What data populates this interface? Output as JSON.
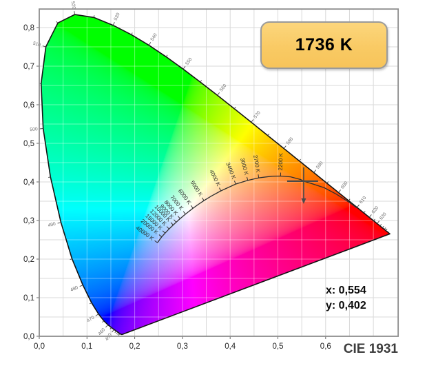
{
  "badge": {
    "label": "1736 K"
  },
  "readout": {
    "x": "x: 0,554",
    "y": "y: 0,402"
  },
  "caption": {
    "text": "CIE 1931"
  },
  "colors": {
    "badge_fill": "#f9ca64",
    "badge_border": "#9a9a9a",
    "badge_text": "#000000",
    "marker": "#4a4a4a",
    "grid_outer": "#d9d9d9",
    "grid_inner": "rgba(255,255,255,0.4)",
    "locus_outline": "#141414",
    "planckian_line": "#2f2f2f",
    "wavelength_label": "#6e6e6e",
    "axis_label": "#222222",
    "plot_border": "#8e8e8e"
  },
  "chart_data": {
    "type": "scatter",
    "subtype": "cie-1931-chromaticity-diagram",
    "title": "CIE 1931",
    "xlabel": "",
    "ylabel": "",
    "grid": true,
    "grid_step": 0.05,
    "x_axis": {
      "min": 0,
      "max": 0.752,
      "ticks": [
        {
          "v": 0.0,
          "label": "0,0"
        },
        {
          "v": 0.1,
          "label": "0,1"
        },
        {
          "v": 0.2,
          "label": "0,2"
        },
        {
          "v": 0.3,
          "label": "0,3"
        },
        {
          "v": 0.4,
          "label": "0,4"
        },
        {
          "v": 0.5,
          "label": "0,5"
        },
        {
          "v": 0.6,
          "label": "0,6"
        }
      ]
    },
    "y_axis": {
      "min": 0,
      "max": 0.848,
      "ticks": [
        {
          "v": 0.0,
          "label": "0,0"
        },
        {
          "v": 0.1,
          "label": "0,1"
        },
        {
          "v": 0.2,
          "label": "0,2"
        },
        {
          "v": 0.3,
          "label": "0,3"
        },
        {
          "v": 0.4,
          "label": "0,4"
        },
        {
          "v": 0.5,
          "label": "0,5"
        },
        {
          "v": 0.6,
          "label": "0,6"
        },
        {
          "v": 0.7,
          "label": "0,7"
        },
        {
          "v": 0.8,
          "label": "0,8"
        }
      ]
    },
    "marker": {
      "x": 0.554,
      "y": 0.402,
      "cct_kelvin": 1736,
      "label": "1736 K"
    },
    "spectral_locus": [
      [
        380,
        0.1741,
        0.005
      ],
      [
        385,
        0.174,
        0.005
      ],
      [
        390,
        0.1738,
        0.0049
      ],
      [
        395,
        0.1736,
        0.0049
      ],
      [
        400,
        0.1733,
        0.0048
      ],
      [
        405,
        0.173,
        0.0048
      ],
      [
        410,
        0.1726,
        0.0048
      ],
      [
        415,
        0.1721,
        0.0048
      ],
      [
        420,
        0.1714,
        0.0051
      ],
      [
        425,
        0.1703,
        0.0058
      ],
      [
        430,
        0.1689,
        0.0069
      ],
      [
        435,
        0.1669,
        0.0086
      ],
      [
        440,
        0.1644,
        0.0109
      ],
      [
        445,
        0.1611,
        0.0138
      ],
      [
        450,
        0.1566,
        0.0177
      ],
      [
        455,
        0.151,
        0.0227
      ],
      [
        460,
        0.144,
        0.0297
      ],
      [
        465,
        0.1355,
        0.0399
      ],
      [
        470,
        0.1241,
        0.0578
      ],
      [
        475,
        0.1096,
        0.0868
      ],
      [
        480,
        0.0913,
        0.1327
      ],
      [
        485,
        0.0687,
        0.2007
      ],
      [
        490,
        0.0454,
        0.295
      ],
      [
        495,
        0.0235,
        0.4127
      ],
      [
        500,
        0.0082,
        0.5384
      ],
      [
        505,
        0.0039,
        0.6548
      ],
      [
        510,
        0.0139,
        0.7502
      ],
      [
        515,
        0.0389,
        0.812
      ],
      [
        520,
        0.0743,
        0.8338
      ],
      [
        525,
        0.1142,
        0.8262
      ],
      [
        530,
        0.1547,
        0.8059
      ],
      [
        535,
        0.1929,
        0.7816
      ],
      [
        540,
        0.2296,
        0.7543
      ],
      [
        545,
        0.2658,
        0.7243
      ],
      [
        550,
        0.3016,
        0.6923
      ],
      [
        555,
        0.3373,
        0.6589
      ],
      [
        560,
        0.3731,
        0.6245
      ],
      [
        565,
        0.4087,
        0.5896
      ],
      [
        570,
        0.4441,
        0.5547
      ],
      [
        575,
        0.4788,
        0.5202
      ],
      [
        580,
        0.5125,
        0.4866
      ],
      [
        585,
        0.5448,
        0.4544
      ],
      [
        590,
        0.5752,
        0.4242
      ],
      [
        595,
        0.6029,
        0.3965
      ],
      [
        600,
        0.627,
        0.3725
      ],
      [
        605,
        0.6482,
        0.3514
      ],
      [
        610,
        0.6658,
        0.334
      ],
      [
        615,
        0.6801,
        0.3197
      ],
      [
        620,
        0.6915,
        0.3083
      ],
      [
        625,
        0.7006,
        0.2993
      ],
      [
        630,
        0.7079,
        0.292
      ],
      [
        635,
        0.714,
        0.2859
      ],
      [
        640,
        0.719,
        0.2809
      ],
      [
        645,
        0.723,
        0.277
      ],
      [
        650,
        0.726,
        0.274
      ],
      [
        655,
        0.7283,
        0.2717
      ],
      [
        660,
        0.73,
        0.27
      ],
      [
        670,
        0.732,
        0.268
      ],
      [
        680,
        0.7334,
        0.2666
      ],
      [
        690,
        0.7344,
        0.2656
      ],
      [
        700,
        0.7347,
        0.2653
      ]
    ],
    "wavelength_labels_nm": [
      450,
      460,
      470,
      480,
      490,
      500,
      510,
      520,
      530,
      540,
      550,
      560,
      570,
      580,
      590,
      600,
      610,
      620,
      630
    ],
    "wavelength_minor_tick_step_nm": 5,
    "planckian_locus": [
      [
        950,
        0.665,
        0.333,
        null
      ],
      [
        1000,
        0.6528,
        0.3444,
        null
      ],
      [
        1200,
        0.623,
        0.368,
        null
      ],
      [
        1400,
        0.597,
        0.385,
        null
      ],
      [
        1600,
        0.57,
        0.396,
        null
      ],
      [
        1736,
        0.554,
        0.402,
        null
      ],
      [
        1800,
        0.548,
        0.406,
        null
      ],
      [
        2000,
        0.5267,
        0.4133,
        null
      ],
      [
        2200,
        0.5056,
        0.4152,
        "2200 K"
      ],
      [
        2400,
        0.4878,
        0.4148,
        null
      ],
      [
        2700,
        0.4599,
        0.4106,
        "2700 K"
      ],
      [
        3000,
        0.4369,
        0.4041,
        "3000 K"
      ],
      [
        3400,
        0.4116,
        0.3944,
        "3400 K"
      ],
      [
        4000,
        0.3805,
        0.3768,
        "4000 K"
      ],
      [
        4500,
        0.3608,
        0.3636,
        null
      ],
      [
        5000,
        0.3451,
        0.3516,
        "5000 K"
      ],
      [
        5500,
        0.3325,
        0.3411,
        null
      ],
      [
        6000,
        0.3221,
        0.3318,
        "6000 K"
      ],
      [
        7000,
        0.3064,
        0.3166,
        "7000 K"
      ],
      [
        8000,
        0.2952,
        0.3048,
        "8000 K"
      ],
      [
        9000,
        0.2869,
        0.2956,
        "9000 K"
      ],
      [
        10000,
        0.2807,
        0.2884,
        "10000 K"
      ],
      [
        12000,
        0.2721,
        0.2782,
        "12000 K"
      ],
      [
        15000,
        0.2637,
        0.2673,
        "15000 K"
      ],
      [
        20000,
        0.2565,
        0.2577,
        "20000 K"
      ],
      [
        40000,
        0.2476,
        0.2425,
        "40000 K"
      ]
    ]
  }
}
